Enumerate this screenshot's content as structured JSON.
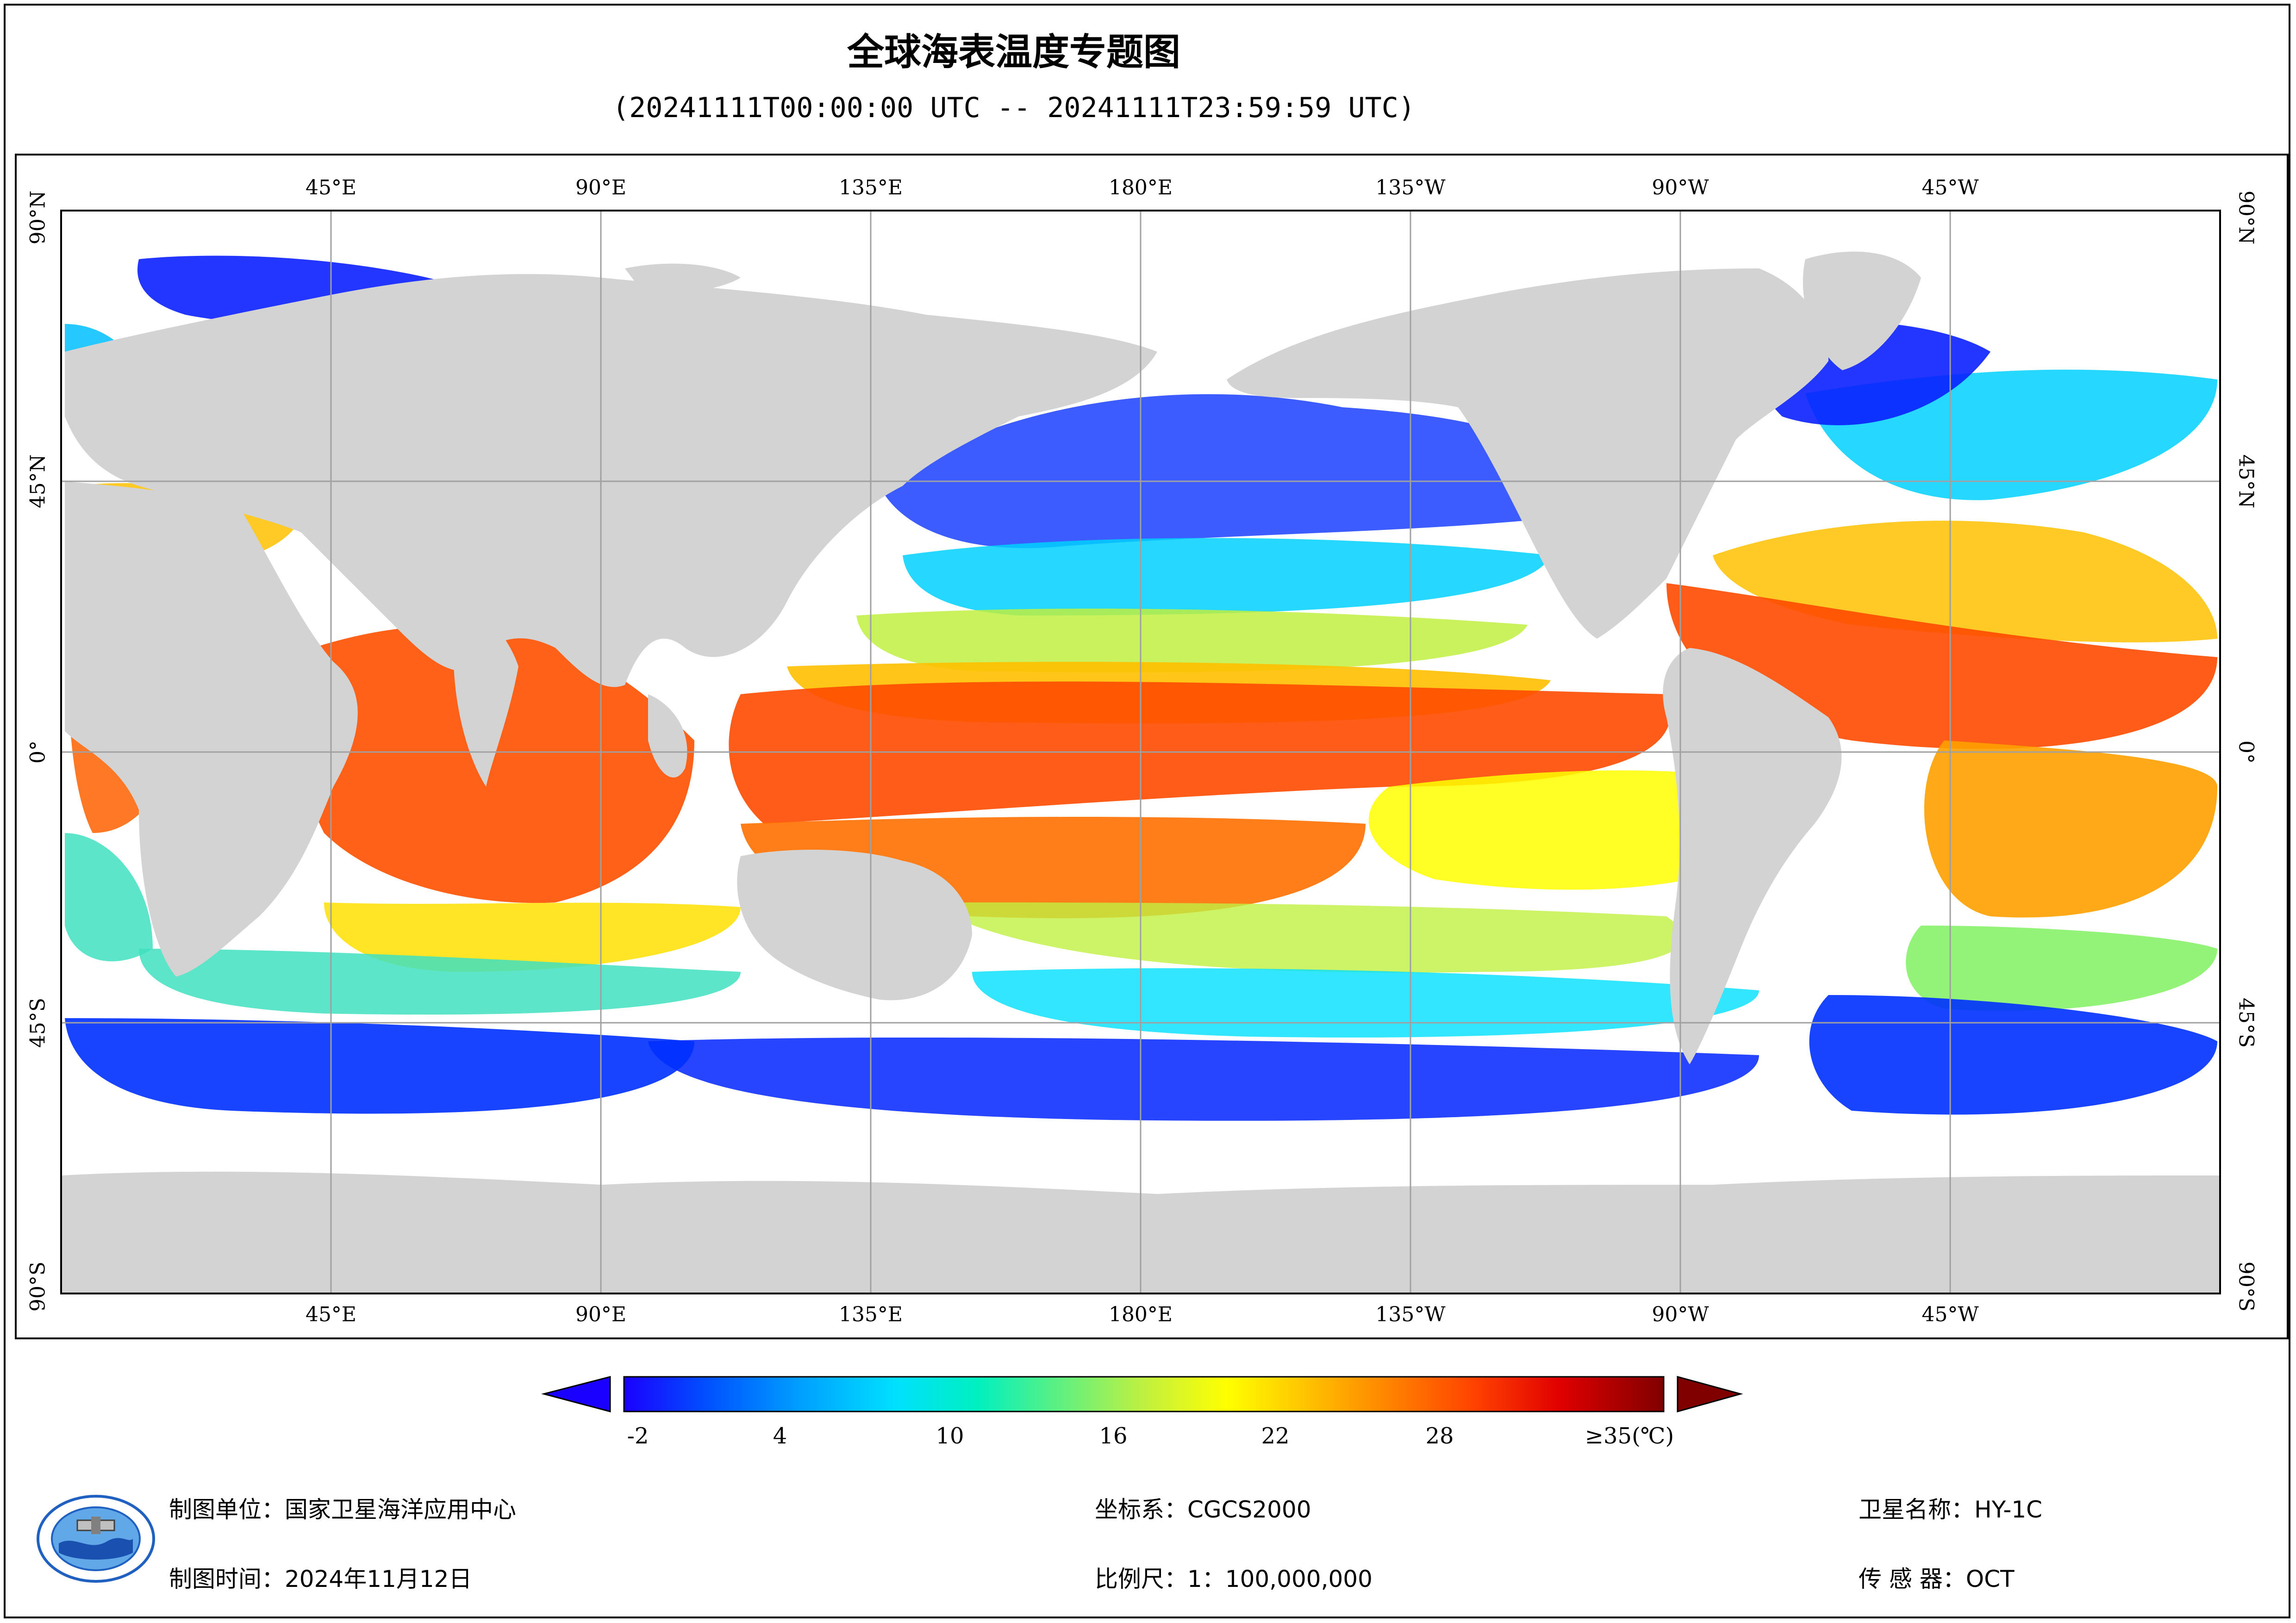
{
  "header": {
    "title": "全球海表温度专题图",
    "time_range": "(20241111T00:00:00 UTC -- 20241111T23:59:59 UTC)"
  },
  "map": {
    "lon_labels": [
      "45°E",
      "90°E",
      "135°E",
      "180°E",
      "135°W",
      "90°W",
      "45°W"
    ],
    "lat_labels": [
      "90°N",
      "45°N",
      "0°",
      "45°S",
      "90°S"
    ],
    "colors": {
      "land": "#d3d3d3",
      "no_data": "#ffffff",
      "grid": "#a0a0a0"
    }
  },
  "colorbar": {
    "tick_labels": [
      "-2",
      "4",
      "10",
      "16",
      "22",
      "28",
      "≥35(℃)"
    ],
    "range": [
      -2,
      35
    ],
    "colors": [
      "#1a00ff",
      "#0050ff",
      "#00a0ff",
      "#00e0ff",
      "#00f0c0",
      "#60f080",
      "#c0f040",
      "#ffff00",
      "#ffc000",
      "#ff8000",
      "#ff4000",
      "#e00000",
      "#800000"
    ]
  },
  "footer": {
    "mapping_unit": "制图单位：国家卫星海洋应用中心",
    "mapping_time": "制图时间：2024年11月12日",
    "coordinate_system": "坐标系：CGCS2000",
    "scale": "比例尺：1：100,000,000",
    "satellite": "卫星名称：HY-1C",
    "sensor": "传 感 器：OCT"
  },
  "icons": {
    "logo": "organization-logo-icon"
  }
}
